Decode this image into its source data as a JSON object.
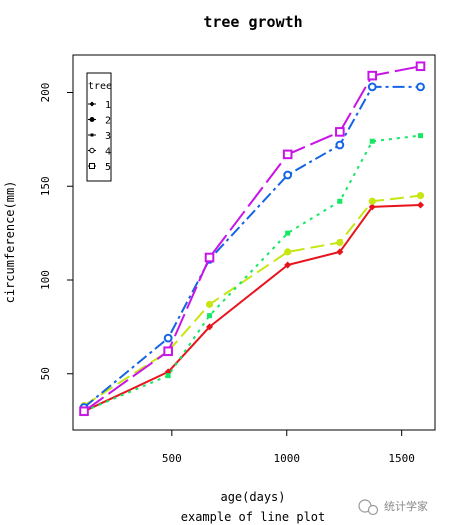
{
  "chart_data": {
    "type": "line",
    "title": "tree growth",
    "xlabel": "age(days)",
    "ylabel": "circumference(mm)",
    "subtitle": "example of line plot",
    "xlim": [
      70,
      1645
    ],
    "ylim": [
      20,
      220
    ],
    "x_ticks": [
      500,
      1000,
      1500
    ],
    "y_ticks": [
      50,
      100,
      150,
      200
    ],
    "legend": {
      "title": "tree",
      "position": "top-left"
    },
    "grid": false,
    "x": [
      118,
      484,
      664,
      1004,
      1231,
      1372,
      1582
    ],
    "series": [
      {
        "name": "1",
        "color": "#e8141c",
        "values": [
          30,
          51,
          75,
          108,
          115,
          139,
          140
        ]
      },
      {
        "name": "2",
        "color": "#c8e614",
        "values": [
          33,
          62,
          87,
          115,
          120,
          142,
          145
        ]
      },
      {
        "name": "3",
        "color": "#14e864",
        "values": [
          30,
          49,
          81,
          125,
          142,
          174,
          177
        ]
      },
      {
        "name": "4",
        "color": "#1464e6",
        "values": [
          32,
          69,
          111,
          156,
          172,
          203,
          203
        ]
      },
      {
        "name": "5",
        "color": "#c814e6",
        "values": [
          30,
          62,
          112,
          167,
          179,
          209,
          214
        ]
      }
    ]
  },
  "watermark": {
    "text": "统计学家"
  }
}
